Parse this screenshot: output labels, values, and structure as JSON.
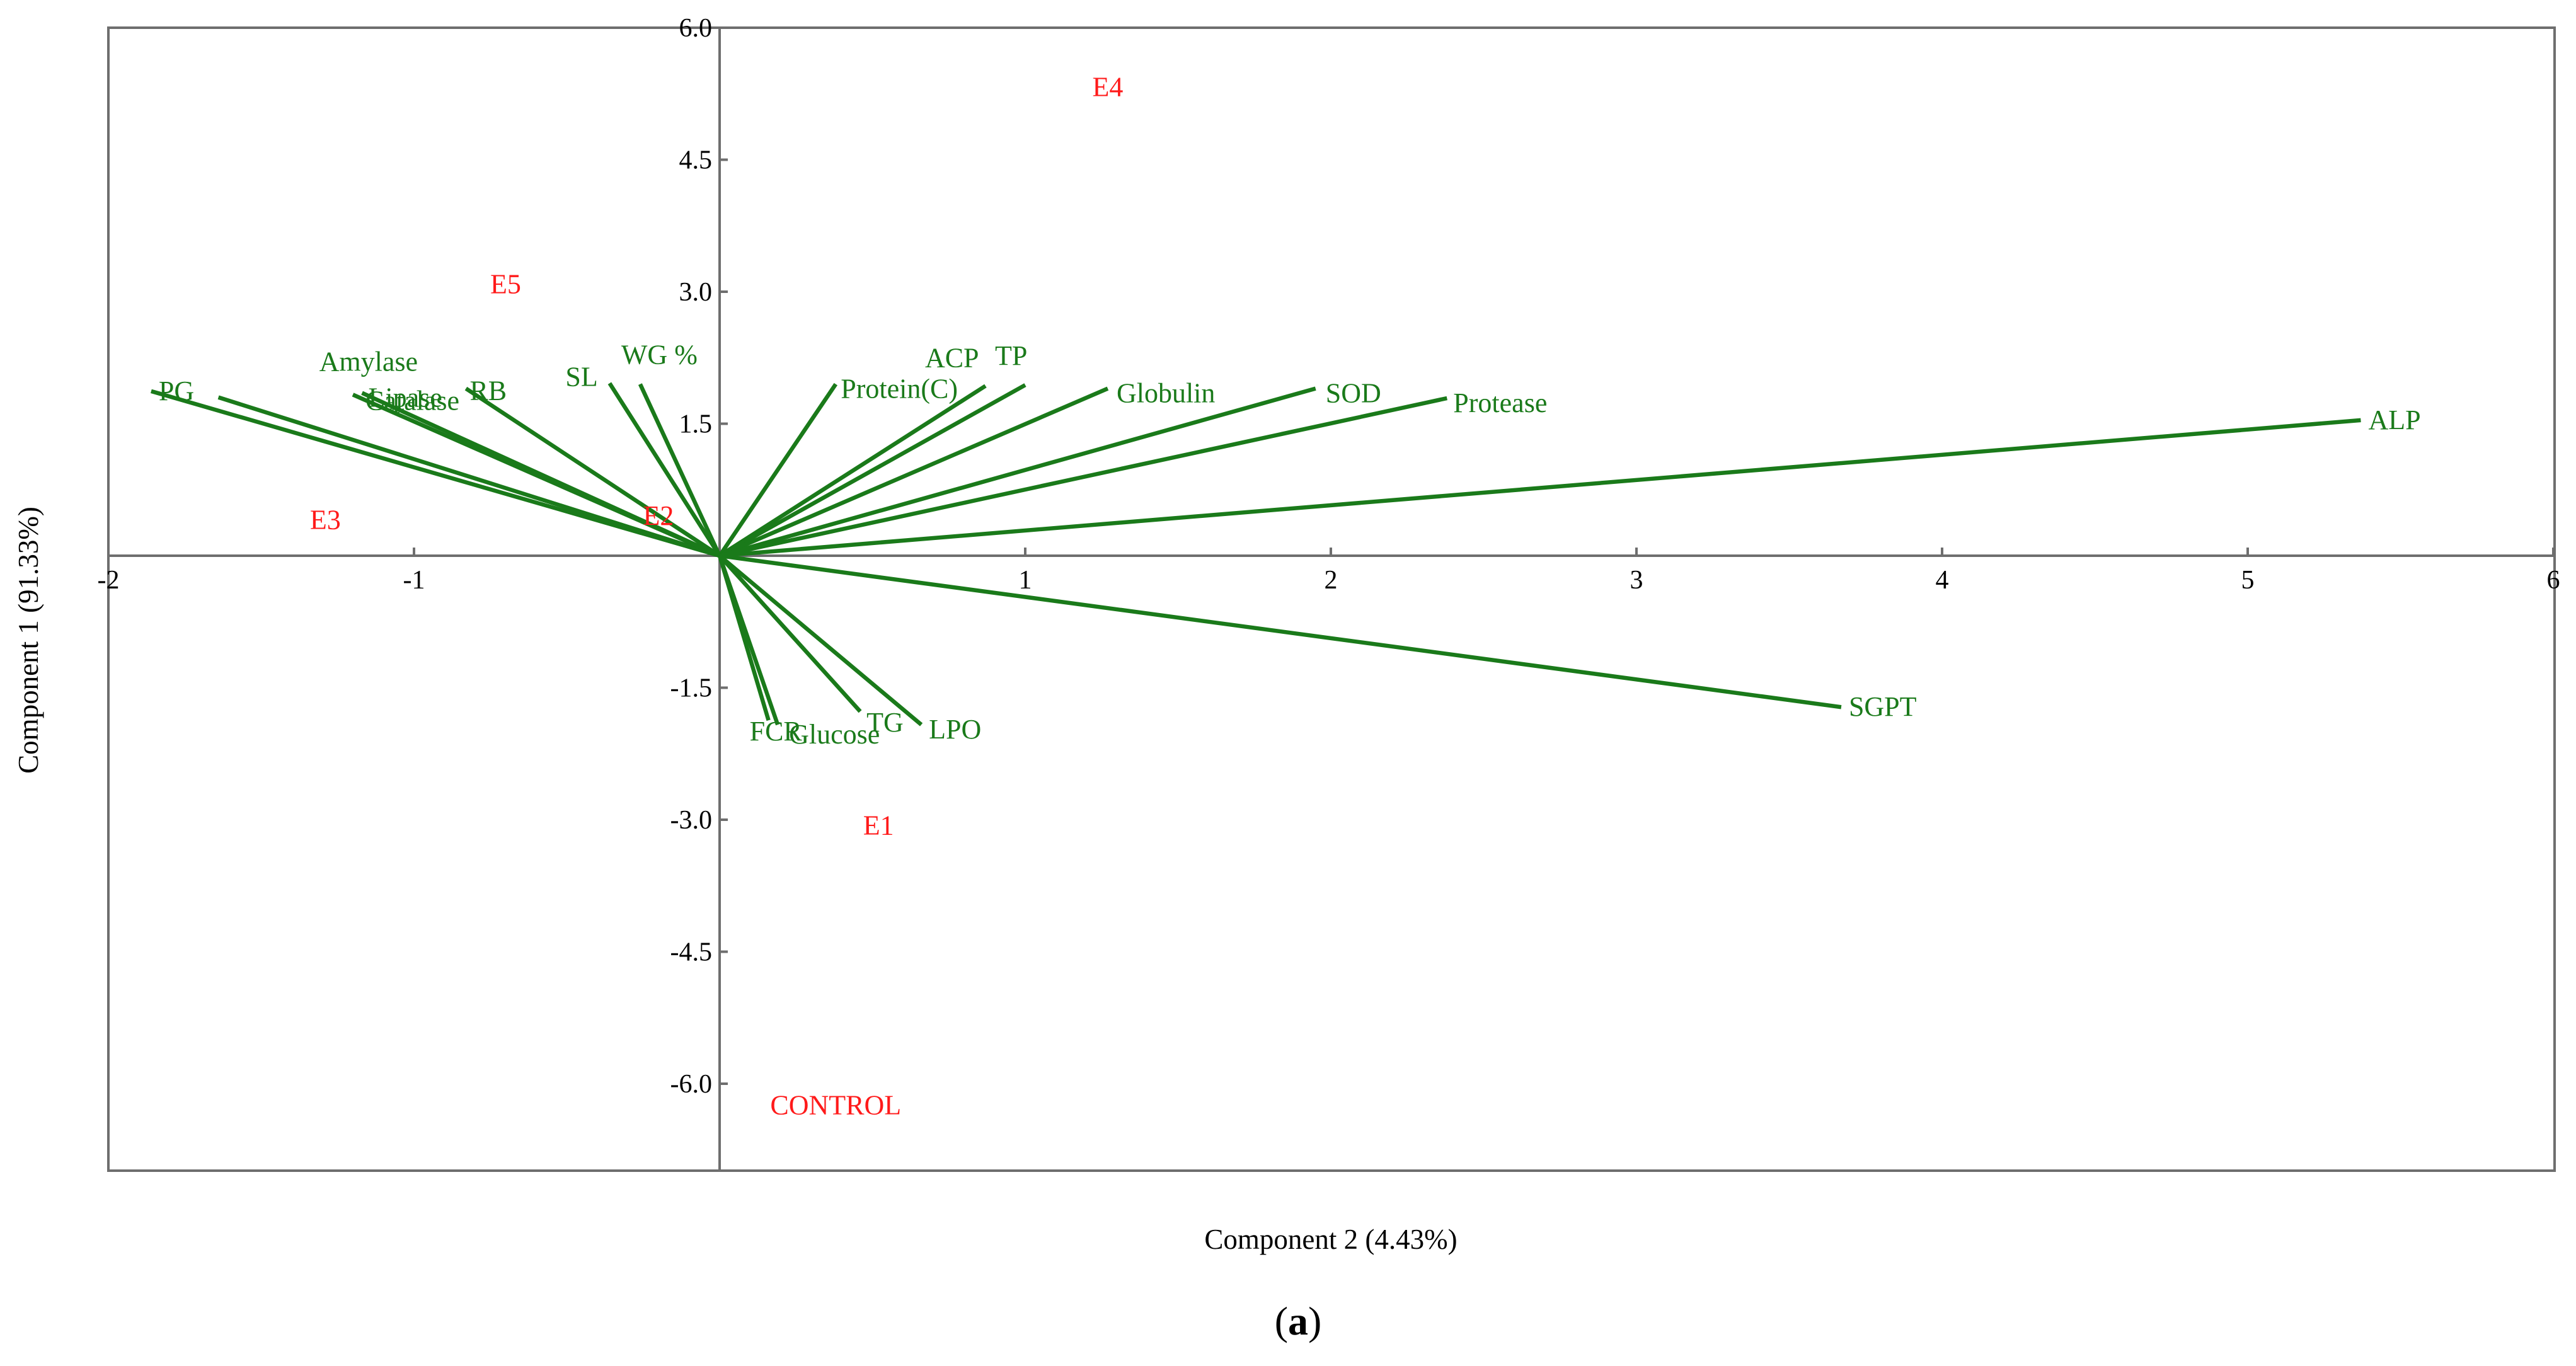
{
  "chart_data": {
    "type": "biplot",
    "xlabel": "Component 2 (4.43%)",
    "ylabel": "Component 1 (91.33%)",
    "xlim": [
      -2,
      6
    ],
    "ylim": [
      -7,
      6
    ],
    "x_ticks": [
      {
        "value": -2,
        "label": "-2"
      },
      {
        "value": -1,
        "label": "-1"
      },
      {
        "value": 1,
        "label": "1"
      },
      {
        "value": 2,
        "label": "2"
      },
      {
        "value": 3,
        "label": "3"
      },
      {
        "value": 4,
        "label": "4"
      },
      {
        "value": 5,
        "label": "5"
      },
      {
        "value": 6,
        "label": "6"
      }
    ],
    "y_ticks": [
      {
        "value": 6.0,
        "label": "6.0"
      },
      {
        "value": 4.5,
        "label": "4.5"
      },
      {
        "value": 3.0,
        "label": "3.0"
      },
      {
        "value": 1.5,
        "label": "1.5"
      },
      {
        "value": -1.5,
        "label": "-1.5"
      },
      {
        "value": -3.0,
        "label": "-3.0"
      },
      {
        "value": -4.5,
        "label": "-4.5"
      },
      {
        "value": -6.0,
        "label": "-6.0"
      }
    ],
    "loadings": [
      {
        "name": "PG",
        "x": -1.86,
        "y": 1.87
      },
      {
        "name": "Amylase",
        "x": -1.64,
        "y": 1.8
      },
      {
        "name": "Catalase",
        "x": -1.2,
        "y": 1.83
      },
      {
        "name": "Lipase",
        "x": -1.17,
        "y": 1.85
      },
      {
        "name": "RB",
        "x": -0.83,
        "y": 1.9
      },
      {
        "name": "SL",
        "x": -0.36,
        "y": 1.96
      },
      {
        "name": "WG %",
        "x": -0.26,
        "y": 1.95
      },
      {
        "name": "Protein(C)",
        "x": 0.38,
        "y": 1.95
      },
      {
        "name": "ACP",
        "x": 0.87,
        "y": 1.93
      },
      {
        "name": "TP",
        "x": 1.0,
        "y": 1.94
      },
      {
        "name": "Globulin",
        "x": 1.27,
        "y": 1.9
      },
      {
        "name": "SOD",
        "x": 1.95,
        "y": 1.9
      },
      {
        "name": "Protease",
        "x": 2.38,
        "y": 1.79
      },
      {
        "name": "ALP",
        "x": 5.37,
        "y": 1.54
      },
      {
        "name": "SGPT",
        "x": 3.67,
        "y": -1.72
      },
      {
        "name": "FCR",
        "x": 0.16,
        "y": -1.87
      },
      {
        "name": "Glucose",
        "x": 0.19,
        "y": -1.92
      },
      {
        "name": "TG",
        "x": 0.46,
        "y": -1.77
      },
      {
        "name": "LPO",
        "x": 0.66,
        "y": -1.92
      }
    ],
    "samples": [
      {
        "name": "E4",
        "x": 1.27,
        "y": 5.33
      },
      {
        "name": "E5",
        "x": -0.7,
        "y": 3.09
      },
      {
        "name": "E3",
        "x": -1.29,
        "y": 0.41
      },
      {
        "name": "E2",
        "x": -0.2,
        "y": 0.46
      },
      {
        "name": "E1",
        "x": 0.52,
        "y": -3.06
      },
      {
        "name": "CONTROL",
        "x": 0.38,
        "y": -6.24
      }
    ]
  },
  "caption": {
    "open": "(",
    "letter": "a",
    "close": ")"
  }
}
